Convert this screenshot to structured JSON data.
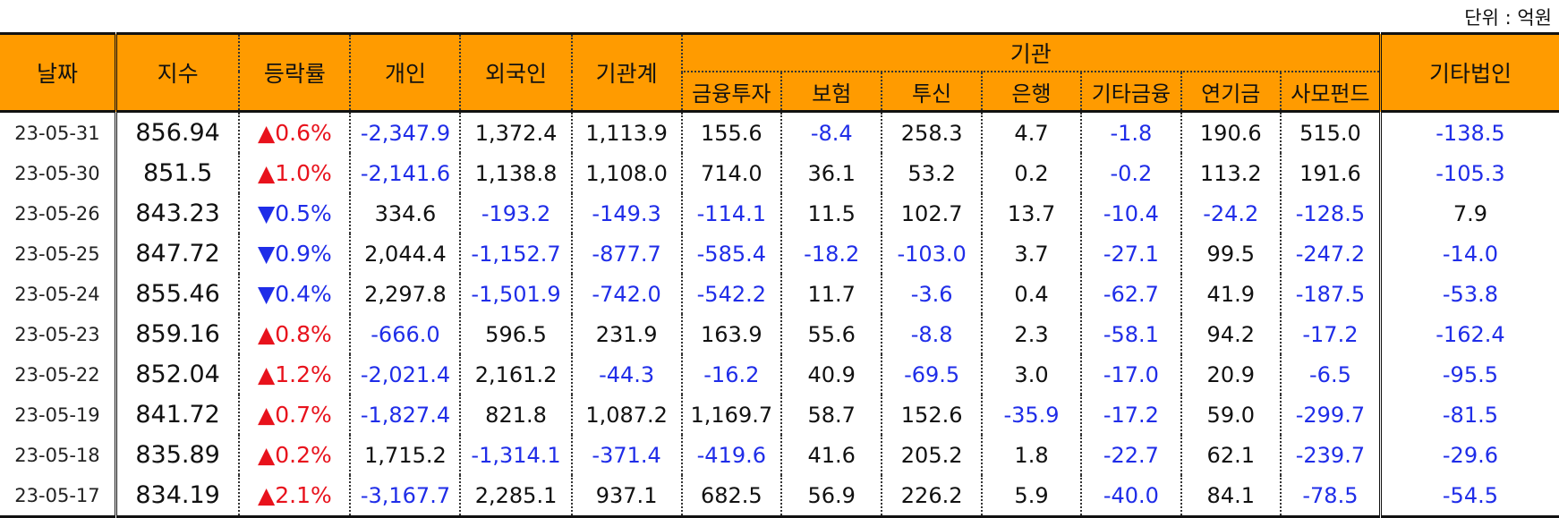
{
  "unit_label": "단위 : 억원",
  "header": {
    "date": "날짜",
    "index": "지수",
    "rate": "등락률",
    "individual": "개인",
    "foreign": "외국인",
    "institution_total": "기관계",
    "institution_group": "기관",
    "financial_investment": "금융투자",
    "insurance": "보험",
    "investment_trust": "투신",
    "bank": "은행",
    "other_finance": "기타금융",
    "pension": "연기금",
    "private_fund": "사모펀드",
    "other_corp": "기타법인"
  },
  "colors": {
    "header_bg": "#ff9b00",
    "negative": "#1f2de8",
    "up_arrow": "#e8121c",
    "down_arrow": "#1f2de8"
  },
  "rows": [
    {
      "date": "23-05-31",
      "index": "856.94",
      "dir": "up",
      "rate": "0.6%",
      "individual": "-2,347.9",
      "foreign": "1,372.4",
      "inst": "1,113.9",
      "fin": "155.6",
      "ins": "-8.4",
      "trust": "258.3",
      "bank": "4.7",
      "ofin": "-1.8",
      "pension": "190.6",
      "pfund": "515.0",
      "ocorp": "-138.5"
    },
    {
      "date": "23-05-30",
      "index": "851.5",
      "dir": "up",
      "rate": "1.0%",
      "individual": "-2,141.6",
      "foreign": "1,138.8",
      "inst": "1,108.0",
      "fin": "714.0",
      "ins": "36.1",
      "trust": "53.2",
      "bank": "0.2",
      "ofin": "-0.2",
      "pension": "113.2",
      "pfund": "191.6",
      "ocorp": "-105.3"
    },
    {
      "date": "23-05-26",
      "index": "843.23",
      "dir": "down",
      "rate": "0.5%",
      "individual": "334.6",
      "foreign": "-193.2",
      "inst": "-149.3",
      "fin": "-114.1",
      "ins": "11.5",
      "trust": "102.7",
      "bank": "13.7",
      "ofin": "-10.4",
      "pension": "-24.2",
      "pfund": "-128.5",
      "ocorp": "7.9"
    },
    {
      "date": "23-05-25",
      "index": "847.72",
      "dir": "down",
      "rate": "0.9%",
      "individual": "2,044.4",
      "foreign": "-1,152.7",
      "inst": "-877.7",
      "fin": "-585.4",
      "ins": "-18.2",
      "trust": "-103.0",
      "bank": "3.7",
      "ofin": "-27.1",
      "pension": "99.5",
      "pfund": "-247.2",
      "ocorp": "-14.0"
    },
    {
      "date": "23-05-24",
      "index": "855.46",
      "dir": "down",
      "rate": "0.4%",
      "individual": "2,297.8",
      "foreign": "-1,501.9",
      "inst": "-742.0",
      "fin": "-542.2",
      "ins": "11.7",
      "trust": "-3.6",
      "bank": "0.4",
      "ofin": "-62.7",
      "pension": "41.9",
      "pfund": "-187.5",
      "ocorp": "-53.8"
    },
    {
      "date": "23-05-23",
      "index": "859.16",
      "dir": "up",
      "rate": "0.8%",
      "individual": "-666.0",
      "foreign": "596.5",
      "inst": "231.9",
      "fin": "163.9",
      "ins": "55.6",
      "trust": "-8.8",
      "bank": "2.3",
      "ofin": "-58.1",
      "pension": "94.2",
      "pfund": "-17.2",
      "ocorp": "-162.4"
    },
    {
      "date": "23-05-22",
      "index": "852.04",
      "dir": "up",
      "rate": "1.2%",
      "individual": "-2,021.4",
      "foreign": "2,161.2",
      "inst": "-44.3",
      "fin": "-16.2",
      "ins": "40.9",
      "trust": "-69.5",
      "bank": "3.0",
      "ofin": "-17.0",
      "pension": "20.9",
      "pfund": "-6.5",
      "ocorp": "-95.5"
    },
    {
      "date": "23-05-19",
      "index": "841.72",
      "dir": "up",
      "rate": "0.7%",
      "individual": "-1,827.4",
      "foreign": "821.8",
      "inst": "1,087.2",
      "fin": "1,169.7",
      "ins": "58.7",
      "trust": "152.6",
      "bank": "-35.9",
      "ofin": "-17.2",
      "pension": "59.0",
      "pfund": "-299.7",
      "ocorp": "-81.5"
    },
    {
      "date": "23-05-18",
      "index": "835.89",
      "dir": "up",
      "rate": "0.2%",
      "individual": "1,715.2",
      "foreign": "-1,314.1",
      "inst": "-371.4",
      "fin": "-419.6",
      "ins": "41.6",
      "trust": "205.2",
      "bank": "1.8",
      "ofin": "-22.7",
      "pension": "62.1",
      "pfund": "-239.7",
      "ocorp": "-29.6"
    },
    {
      "date": "23-05-17",
      "index": "834.19",
      "dir": "up",
      "rate": "2.1%",
      "individual": "-3,167.7",
      "foreign": "2,285.1",
      "inst": "937.1",
      "fin": "682.5",
      "ins": "56.9",
      "trust": "226.2",
      "bank": "5.9",
      "ofin": "-40.0",
      "pension": "84.1",
      "pfund": "-78.5",
      "ocorp": "-54.5"
    }
  ]
}
